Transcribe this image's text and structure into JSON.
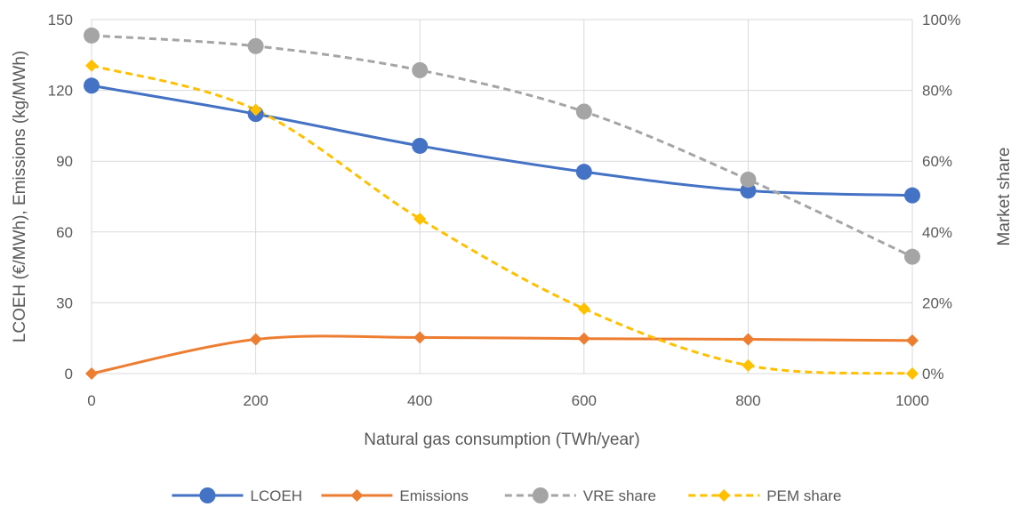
{
  "chart_data": {
    "type": "line",
    "x": [
      0,
      200,
      400,
      600,
      800,
      1000
    ],
    "xlabel": "Natural gas consumption (TWh/year)",
    "xlim": [
      0,
      1000
    ],
    "x_ticks": [
      "0",
      "200",
      "400",
      "600",
      "800",
      "1000"
    ],
    "ylabel": "LCOEH (€/MWh), Emissions (kg/MWh)",
    "ylim": [
      0,
      150
    ],
    "y_ticks": [
      "0",
      "30",
      "60",
      "90",
      "120",
      "150"
    ],
    "y2label": "Market share",
    "y2lim": [
      0,
      1
    ],
    "y2_ticks": [
      "0%",
      "20%",
      "40%",
      "60%",
      "80%",
      "100%"
    ],
    "grid": true,
    "legend_position": "bottom",
    "series": [
      {
        "name": "LCOEH",
        "axis": "left",
        "values": [
          122,
          110,
          96.5,
          85.5,
          77.5,
          75.5
        ],
        "color": "#4472c4",
        "dash": "solid",
        "marker": "circle"
      },
      {
        "name": "Emissions",
        "axis": "left",
        "values": [
          0,
          14.5,
          15.3,
          14.8,
          14.5,
          14
        ],
        "color": "#ed7d31",
        "dash": "solid",
        "marker": "diamond"
      },
      {
        "name": "VRE share",
        "axis": "right",
        "values": [
          0.955,
          0.925,
          0.857,
          0.74,
          0.548,
          0.33
        ],
        "color": "#a5a5a5",
        "dash": "dashed",
        "marker": "circle"
      },
      {
        "name": "PEM share",
        "axis": "right",
        "values": [
          0.87,
          0.745,
          0.437,
          0.183,
          0.023,
          0
        ],
        "color": "#ffc000",
        "dash": "dashed",
        "marker": "diamond"
      }
    ]
  }
}
